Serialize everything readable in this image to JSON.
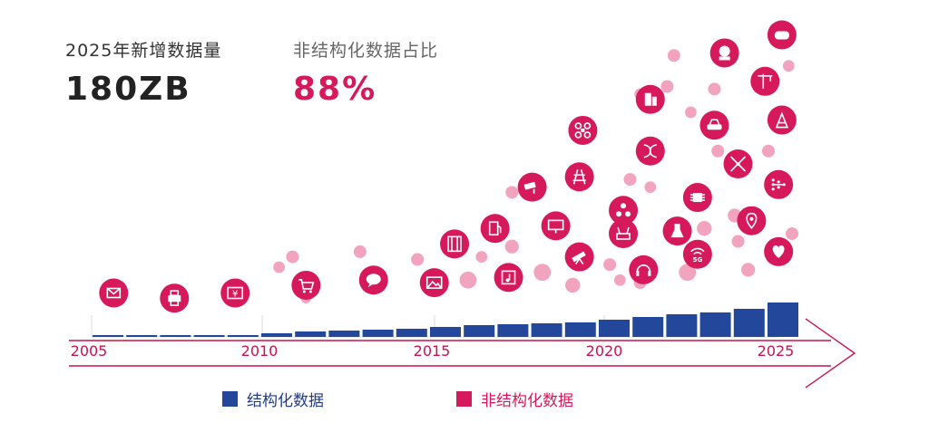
{
  "headline": {
    "total": {
      "label": "2025年新增数据量",
      "value": "180ZB"
    },
    "share": {
      "label": "非结构化数据占比",
      "value": "88%"
    }
  },
  "colors": {
    "structured": "#23489b",
    "unstructured": "#d6195b",
    "bubble": "#f2a3bd",
    "axis": "#c9124f"
  },
  "chart_data": {
    "type": "bar",
    "title": "",
    "xlabel": "",
    "ylabel": "",
    "x_ticks": [
      "2005",
      "2010",
      "2015",
      "2020",
      "2025"
    ],
    "categories": [
      "2005",
      "2006",
      "2007",
      "2008",
      "2009",
      "2010",
      "2011",
      "2012",
      "2013",
      "2014",
      "2015",
      "2016",
      "2017",
      "2018",
      "2019",
      "2020",
      "2021",
      "2022",
      "2023",
      "2024",
      "2025"
    ],
    "series": [
      {
        "name": "结构化数据",
        "values": [
          0.2,
          0.2,
          0.2,
          0.2,
          0.2,
          0.4,
          0.6,
          0.7,
          0.8,
          0.9,
          1.1,
          1.3,
          1.4,
          1.5,
          1.6,
          1.9,
          2.2,
          2.5,
          2.7,
          3.1,
          3.8
        ]
      }
    ],
    "ylim": [
      0,
      4.5
    ],
    "icons": [
      {
        "year": 2005.6,
        "level": 1.0,
        "icon": "mail-icon"
      },
      {
        "year": 2007.4,
        "level": 0.8,
        "icon": "printer-icon"
      },
      {
        "year": 2009.2,
        "level": 1.0,
        "icon": "yen-sign-icon"
      },
      {
        "year": 2011.3,
        "level": 1.3,
        "icon": "cart-icon"
      },
      {
        "year": 2013.3,
        "level": 1.5,
        "icon": "chat-icon"
      },
      {
        "year": 2015.1,
        "level": 1.4,
        "icon": "image-icon"
      },
      {
        "year": 2015.7,
        "level": 2.9,
        "icon": "film-icon"
      },
      {
        "year": 2017.3,
        "level": 1.6,
        "icon": "music-icon"
      },
      {
        "year": 2016.9,
        "level": 3.5,
        "icon": "fuel-icon"
      },
      {
        "year": 2018.0,
        "level": 5.1,
        "icon": "cctv-icon"
      },
      {
        "year": 2018.7,
        "level": 3.6,
        "icon": "billboard-icon"
      },
      {
        "year": 2019.4,
        "level": 2.4,
        "icon": "telescope-icon"
      },
      {
        "year": 2019.4,
        "level": 5.5,
        "icon": "railway-icon"
      },
      {
        "year": 2019.5,
        "level": 7.3,
        "icon": "drone-icon"
      },
      {
        "year": 2020.7,
        "level": 4.2,
        "icon": "molecule-icon"
      },
      {
        "year": 2020.7,
        "level": 3.3,
        "icon": "router-icon"
      },
      {
        "year": 2021.3,
        "level": 1.9,
        "icon": "headset-icon"
      },
      {
        "year": 2021.5,
        "level": 6.5,
        "icon": "dna-icon"
      },
      {
        "year": 2021.5,
        "level": 8.5,
        "icon": "building-icon"
      },
      {
        "year": 2022.3,
        "level": 3.4,
        "icon": "lab-icon"
      },
      {
        "year": 2022.9,
        "level": 2.5,
        "icon": "5g-icon"
      },
      {
        "year": 2022.9,
        "level": 4.7,
        "icon": "chip-icon"
      },
      {
        "year": 2023.4,
        "level": 7.5,
        "icon": "car-icon"
      },
      {
        "year": 2023.7,
        "level": 10.3,
        "icon": "robot-icon"
      },
      {
        "year": 2024.1,
        "level": 6.0,
        "icon": "satellite-icon"
      },
      {
        "year": 2024.5,
        "level": 3.8,
        "icon": "location-icon"
      },
      {
        "year": 2024.9,
        "level": 9.2,
        "icon": "crane-icon"
      },
      {
        "year": 2025.3,
        "level": 5.2,
        "icon": "network-icon"
      },
      {
        "year": 2025.4,
        "level": 7.7,
        "icon": "antenna-icon"
      },
      {
        "year": 2025.3,
        "level": 2.6,
        "icon": "heart-icon"
      },
      {
        "year": 2025.4,
        "level": 11.0,
        "icon": "gamepad-icon"
      }
    ],
    "bubbles": [
      {
        "year": 2011.3,
        "level": 0.8,
        "size": 0.3
      },
      {
        "year": 2010.5,
        "level": 2.0,
        "size": 0.4
      },
      {
        "year": 2010.9,
        "level": 2.4,
        "size": 0.5
      },
      {
        "year": 2012.9,
        "level": 2.6,
        "size": 0.5
      },
      {
        "year": 2014.6,
        "level": 2.3,
        "size": 0.5
      },
      {
        "year": 2016.1,
        "level": 1.5,
        "size": 0.9
      },
      {
        "year": 2016.5,
        "level": 2.4,
        "size": 0.4
      },
      {
        "year": 2017.4,
        "level": 2.8,
        "size": 0.6
      },
      {
        "year": 2017.4,
        "level": 4.9,
        "size": 0.5
      },
      {
        "year": 2018.3,
        "level": 1.8,
        "size": 0.9
      },
      {
        "year": 2019.2,
        "level": 1.3,
        "size": 0.7
      },
      {
        "year": 2020.3,
        "level": 2.1,
        "size": 0.5
      },
      {
        "year": 2020.6,
        "level": 1.5,
        "size": 0.4
      },
      {
        "year": 2020.9,
        "level": 5.4,
        "size": 0.5
      },
      {
        "year": 2021.2,
        "level": 1.4,
        "size": 0.5
      },
      {
        "year": 2021.5,
        "level": 5.1,
        "size": 0.4
      },
      {
        "year": 2021.2,
        "level": 8.7,
        "size": 0.4
      },
      {
        "year": 2022.0,
        "level": 9.0,
        "size": 0.5
      },
      {
        "year": 2022.2,
        "level": 10.2,
        "size": 0.5
      },
      {
        "year": 2022.6,
        "level": 1.8,
        "size": 0.9
      },
      {
        "year": 2022.7,
        "level": 8.0,
        "size": 0.4
      },
      {
        "year": 2023.1,
        "level": 3.5,
        "size": 0.7
      },
      {
        "year": 2023.4,
        "level": 8.9,
        "size": 0.5
      },
      {
        "year": 2023.5,
        "level": 6.5,
        "size": 0.5
      },
      {
        "year": 2024.1,
        "level": 3.0,
        "size": 0.5
      },
      {
        "year": 2024.4,
        "level": 1.9,
        "size": 0.6
      },
      {
        "year": 2024.0,
        "level": 4.0,
        "size": 0.6
      },
      {
        "year": 2025.0,
        "level": 6.5,
        "size": 0.5
      },
      {
        "year": 2025.7,
        "level": 3.3,
        "size": 0.5
      },
      {
        "year": 2025.6,
        "level": 9.8,
        "size": 0.4
      }
    ]
  },
  "legend": {
    "structured": "结构化数据",
    "unstructured": "非结构化数据"
  }
}
